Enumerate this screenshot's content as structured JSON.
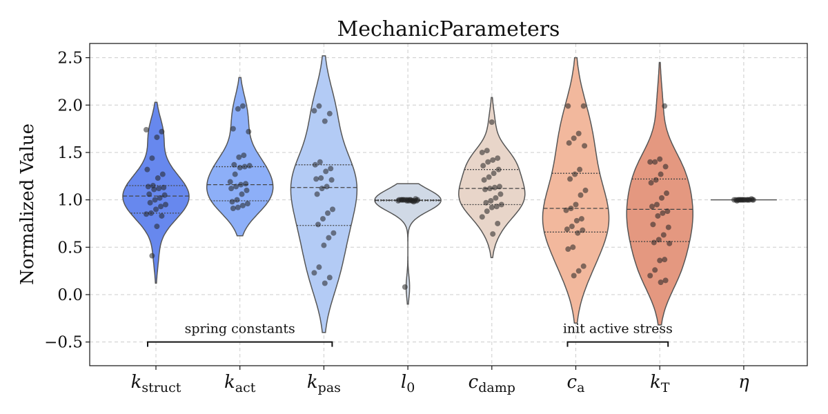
{
  "chart_data": {
    "type": "violin",
    "title": "MechanicParameters",
    "ylabel": "Normalized Value",
    "xlabel": "",
    "ylim": [
      -0.75,
      2.65
    ],
    "yticks": [
      -0.5,
      0.0,
      0.5,
      1.0,
      1.5,
      2.0,
      2.5
    ],
    "ytick_labels": [
      "−0.5",
      "0.0",
      "0.5",
      "1.0",
      "1.5",
      "2.0",
      "2.5"
    ],
    "grid": true,
    "categories": [
      {
        "base": "k",
        "sub": "struct"
      },
      {
        "base": "k",
        "sub": "act"
      },
      {
        "base": "k",
        "sub": "pas"
      },
      {
        "base": "l",
        "sub": "0"
      },
      {
        "base": "c",
        "sub": "damp"
      },
      {
        "base": "c",
        "sub": "a"
      },
      {
        "base": "k",
        "sub": "T"
      },
      {
        "base": "η",
        "sub": ""
      }
    ],
    "colors": [
      "#6788ee",
      "#8daff8",
      "#b3cbf5",
      "#d0d9e6",
      "#e8d5c9",
      "#f2b89d",
      "#e49880",
      "#e2907a"
    ],
    "annotations": [
      {
        "text": "spring constants",
        "from": 0,
        "to": 2
      },
      {
        "text": "init active stress",
        "from": 5,
        "to": 6
      }
    ],
    "series": [
      {
        "violin_range": [
          0.12,
          2.03
        ],
        "quartiles": [
          0.86,
          1.04,
          1.15
        ],
        "points": [
          1.74,
          1.72,
          1.66,
          1.44,
          1.32,
          1.27,
          1.23,
          1.15,
          1.14,
          1.13,
          1.12,
          1.11,
          1.06,
          1.05,
          1.02,
          1.0,
          0.97,
          0.95,
          0.93,
          0.9,
          0.86,
          0.85,
          0.83,
          0.72,
          0.41
        ]
      },
      {
        "violin_range": [
          0.62,
          2.29
        ],
        "quartiles": [
          0.99,
          1.16,
          1.35
        ],
        "points": [
          1.99,
          1.96,
          1.75,
          1.72,
          1.47,
          1.45,
          1.37,
          1.36,
          1.35,
          1.34,
          1.27,
          1.19,
          1.17,
          1.16,
          1.14,
          1.12,
          1.1,
          1.06,
          1.0,
          0.98,
          0.96,
          0.94,
          0.92,
          0.91
        ]
      },
      {
        "violin_range": [
          -0.4,
          2.52
        ],
        "quartiles": [
          0.73,
          1.13,
          1.37
        ],
        "points": [
          1.99,
          1.94,
          1.91,
          1.83,
          1.4,
          1.37,
          1.33,
          1.3,
          1.23,
          1.22,
          1.21,
          1.14,
          1.12,
          1.06,
          0.9,
          0.86,
          0.8,
          0.74,
          0.65,
          0.6,
          0.52,
          0.29,
          0.23,
          0.18,
          0.12
        ]
      },
      {
        "violin_range": [
          -0.1,
          1.17
        ],
        "quartiles": [
          0.99,
          0.995,
          1.0
        ],
        "points": [
          1.01,
          1.0,
          1.0,
          1.0,
          0.99,
          0.99,
          0.99,
          1.0,
          1.0,
          0.99,
          1.0,
          1.0,
          0.99,
          0.98,
          0.99,
          1.0,
          1.0,
          0.99,
          1.0,
          0.08
        ]
      },
      {
        "violin_range": [
          0.39,
          2.08
        ],
        "quartiles": [
          0.95,
          1.12,
          1.32
        ],
        "points": [
          1.82,
          1.52,
          1.5,
          1.44,
          1.42,
          1.4,
          1.36,
          1.32,
          1.28,
          1.24,
          1.21,
          1.14,
          1.13,
          1.12,
          1.11,
          1.06,
          1.02,
          0.99,
          0.97,
          0.95,
          0.93,
          0.92,
          0.88,
          0.82,
          0.75,
          0.64
        ]
      },
      {
        "violin_range": [
          -0.3,
          2.5
        ],
        "quartiles": [
          0.66,
          0.91,
          1.28
        ],
        "points": [
          1.99,
          1.99,
          1.7,
          1.65,
          1.6,
          1.57,
          1.32,
          1.27,
          1.22,
          1.1,
          1.05,
          0.95,
          0.91,
          0.89,
          0.8,
          0.78,
          0.72,
          0.69,
          0.68,
          0.65,
          0.5,
          0.48,
          0.3,
          0.25,
          0.2
        ]
      },
      {
        "violin_range": [
          -0.32,
          2.45
        ],
        "quartiles": [
          0.56,
          0.9,
          1.22
        ],
        "points": [
          1.99,
          1.43,
          1.4,
          1.4,
          1.35,
          1.27,
          1.21,
          1.18,
          1.07,
          1.02,
          0.95,
          0.93,
          0.88,
          0.86,
          0.83,
          0.74,
          0.71,
          0.63,
          0.58,
          0.55,
          0.54,
          0.37,
          0.36,
          0.26,
          0.2,
          0.15,
          0.13
        ]
      },
      {
        "violin_range": [
          0.99,
          1.01
        ],
        "quartiles": [
          1.0,
          1.0,
          1.0
        ],
        "points": [
          1.0,
          1.0,
          1.01,
          1.0,
          1.0,
          0.99,
          1.0,
          1.0,
          1.0,
          1.0,
          1.0,
          1.0,
          1.0,
          1.0,
          1.0,
          1.0,
          1.0,
          1.0
        ]
      }
    ]
  }
}
